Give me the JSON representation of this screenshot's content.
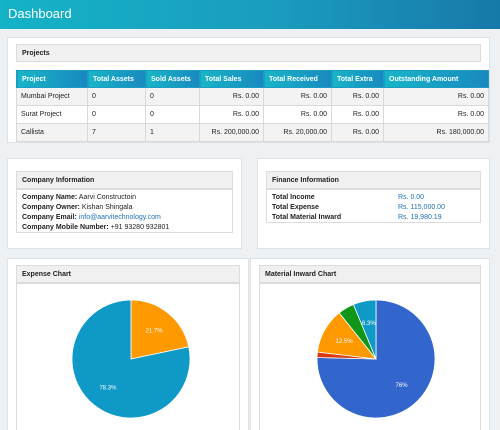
{
  "header": {
    "title": "Dashboard"
  },
  "projects": {
    "title": "Projects",
    "columns": [
      "Project",
      "Total Assets",
      "Sold Assets",
      "Total Sales",
      "Total Received",
      "Total Extra",
      "Outstanding Amount"
    ],
    "rows": [
      [
        "Mumbai Project",
        "0",
        "0",
        "Rs. 0.00",
        "Rs. 0.00",
        "Rs. 0.00",
        "Rs. 0.00"
      ],
      [
        "Surat Project",
        "0",
        "0",
        "Rs. 0.00",
        "Rs. 0.00",
        "Rs. 0.00",
        "Rs. 0.00"
      ],
      [
        "Callista",
        "7",
        "1",
        "Rs. 200,000.00",
        "Rs. 20,000.00",
        "Rs. 0.00",
        "Rs. 180,000.00"
      ]
    ]
  },
  "company": {
    "title": "Company Information",
    "name_label": "Company Name:",
    "name": "Aarvi Constructoin",
    "owner_label": "Company Owner:",
    "owner": "Kishan Shingala",
    "email_label": "Company Email:",
    "email": "info@aarvitechnology.com",
    "mobile_label": "Company Mobile Number:",
    "mobile": "+91 93280 932801"
  },
  "finance": {
    "title": "Finance Information",
    "income_label": "Total Income",
    "income": "Rs. 0.00",
    "expense_label": "Total Expense",
    "expense": "Rs. 115,000.00",
    "inward_label": "Total Material Inward",
    "inward": "Rs. 19,980.19"
  },
  "expense_chart": {
    "title": "Expense Chart",
    "chart_data": {
      "type": "pie",
      "values": [
        21.7,
        78.3
      ],
      "value_labels": [
        "21.7%",
        "78.3%"
      ],
      "colors": [
        "#ff9900",
        "#0e99c6"
      ]
    }
  },
  "inward_chart": {
    "title": "Material Inward Chart",
    "chart_data": {
      "type": "pie",
      "values": [
        76,
        1.5,
        12.5,
        4.5,
        6.3
      ],
      "value_labels": [
        "76%",
        "",
        "12.5%",
        "",
        "6.3%"
      ],
      "colors": [
        "#3366cc",
        "#dc3912",
        "#ff9900",
        "#109618",
        "#0e99c6"
      ]
    }
  }
}
